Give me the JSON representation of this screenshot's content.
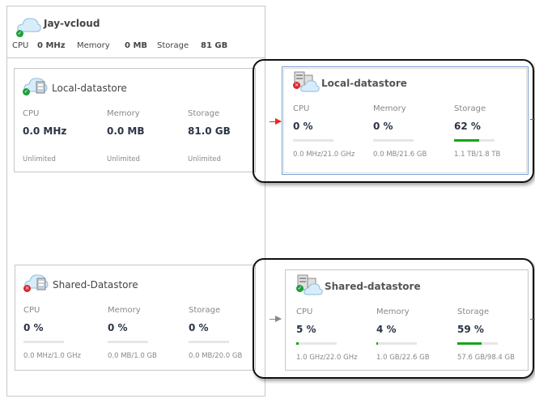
{
  "root": {
    "name": "Jay-vcloud",
    "status": "ok",
    "cpu_label": "CPU",
    "cpu": "0 MHz",
    "memory_label": "Memory",
    "memory": "0 MB",
    "storage_label": "Storage",
    "storage": "81 GB"
  },
  "left_cards": [
    {
      "name": "Local-datastore",
      "status": "ok",
      "metrics": [
        {
          "label": "CPU",
          "value": "0.0 MHz",
          "sub": "Unlimited"
        },
        {
          "label": "Memory",
          "value": "0.0 MB",
          "sub": "Unlimited"
        },
        {
          "label": "Storage",
          "value": "81.0 GB",
          "sub": "Unlimited"
        }
      ]
    },
    {
      "name": "Shared-Datastore",
      "status": "error",
      "metrics": [
        {
          "label": "CPU",
          "value": "0 %",
          "sub": "0.0 MHz/1.0 GHz",
          "percent": 0
        },
        {
          "label": "Memory",
          "value": "0 %",
          "sub": "0.0 MB/1.0 GB",
          "percent": 0
        },
        {
          "label": "Storage",
          "value": "0 %",
          "sub": "0.0 MB/20.0 GB",
          "percent": 0
        }
      ]
    }
  ],
  "right_cards": [
    {
      "name": "Local-datastore",
      "status": "error",
      "metrics": [
        {
          "label": "CPU",
          "value": "0 %",
          "sub": "0.0 MHz/21.0 GHz",
          "percent": 0
        },
        {
          "label": "Memory",
          "value": "0 %",
          "sub": "0.0 MB/21.6 GB",
          "percent": 0
        },
        {
          "label": "Storage",
          "value": "62 %",
          "sub": "1.1 TB/1.8 TB",
          "percent": 62
        }
      ]
    },
    {
      "name": "Shared-datastore",
      "status": "ok",
      "metrics": [
        {
          "label": "CPU",
          "value": "5 %",
          "sub": "1.0 GHz/22.0 GHz",
          "percent": 5
        },
        {
          "label": "Memory",
          "value": "4 %",
          "sub": "1.0 GB/22.6 GB",
          "percent": 4
        },
        {
          "label": "Storage",
          "value": "59 %",
          "sub": "57.6 GB/98.4 GB",
          "percent": 59
        }
      ]
    }
  ],
  "colors": {
    "bar_fill": "#19a319",
    "arrow_top": "#e8291c",
    "arrow_bottom": "#888888",
    "ok": "#1e9e3a",
    "error": "#d9262b",
    "selected_border": "#7a9fd0"
  }
}
